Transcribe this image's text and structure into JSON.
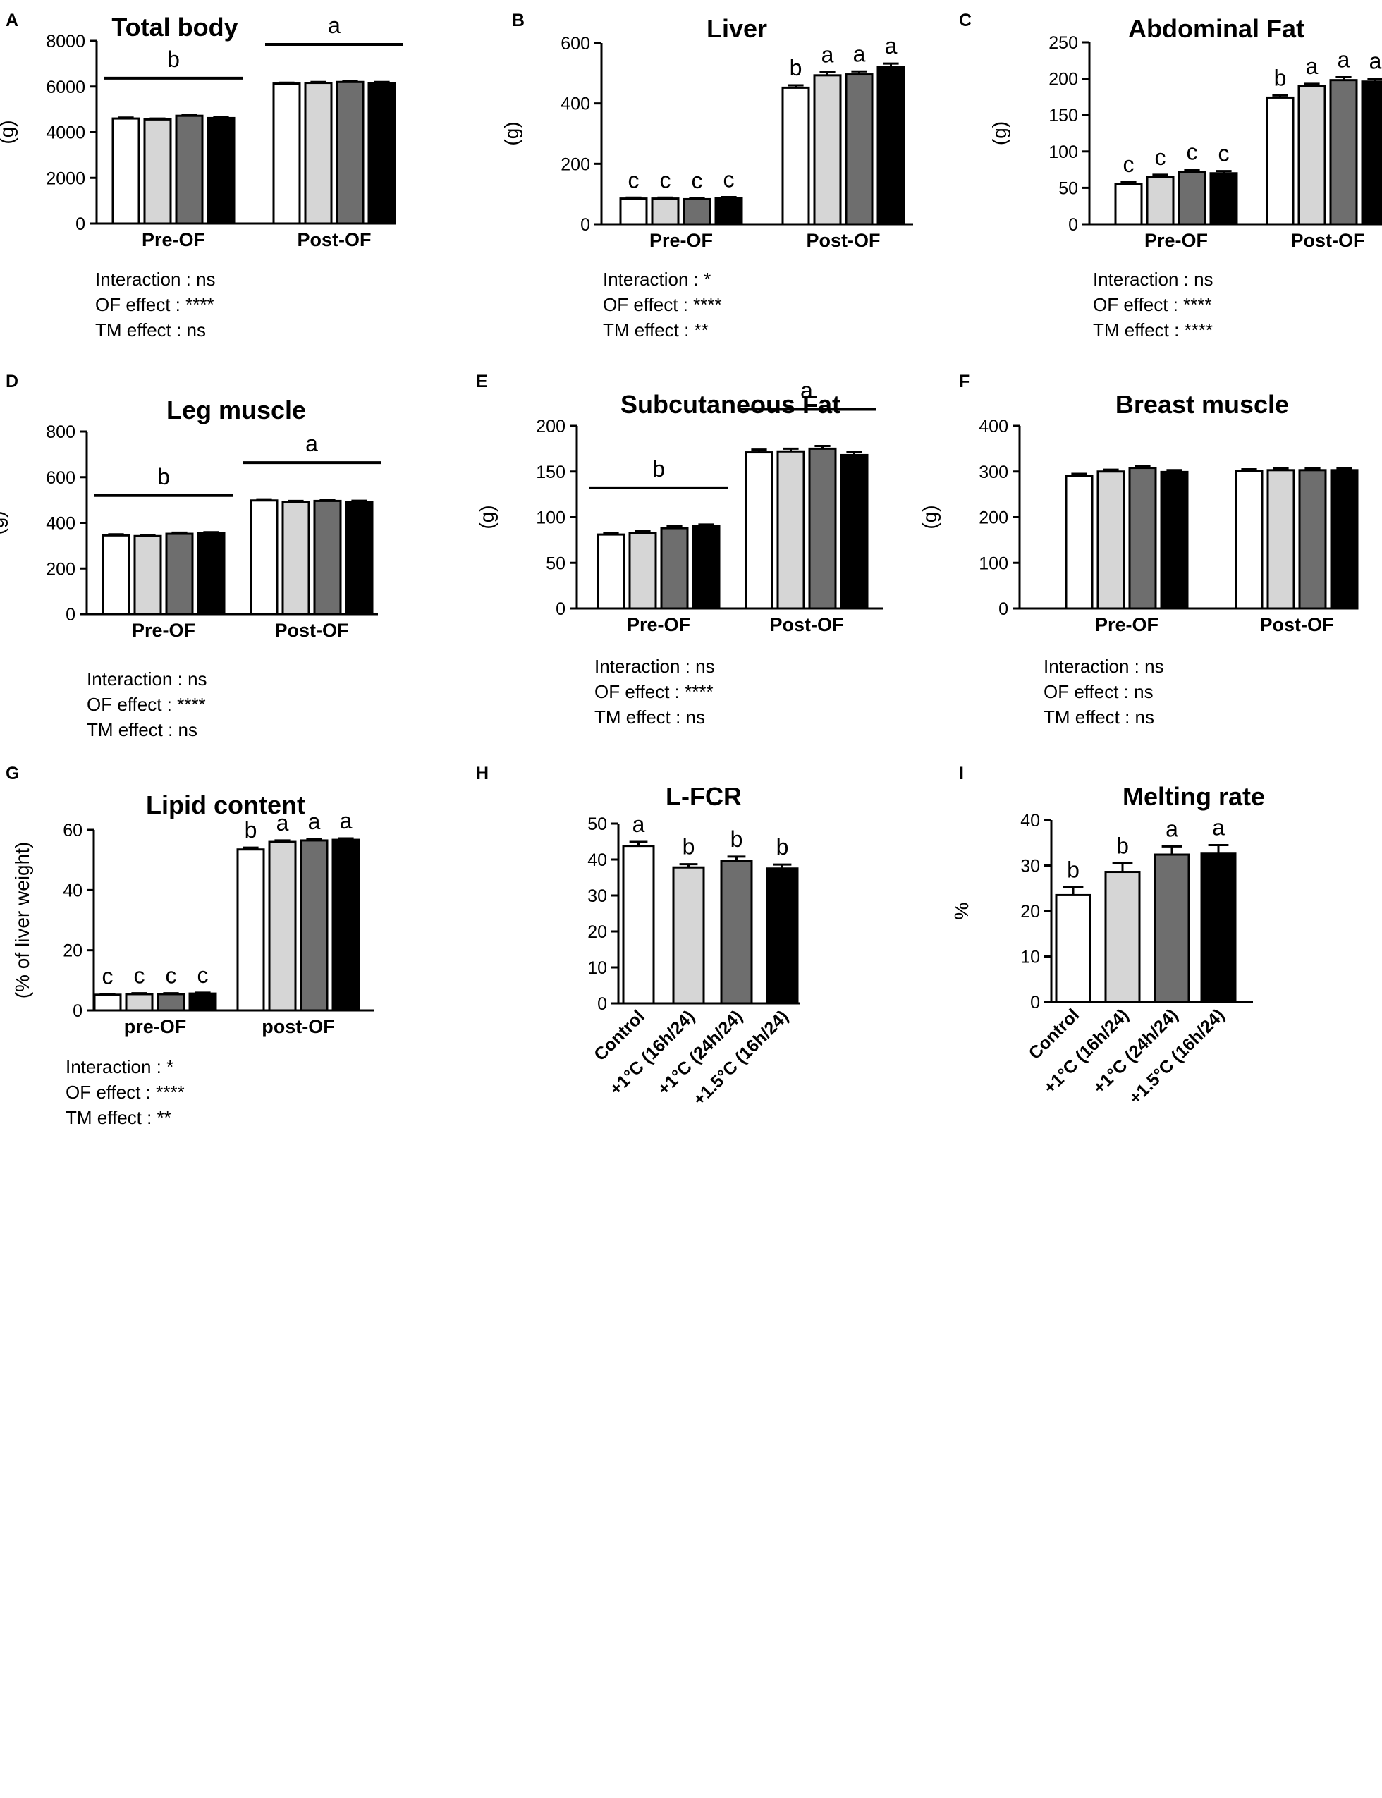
{
  "legend_fills": {
    "control": "#ffffff",
    "tm1_16": "#d6d6d6",
    "tm1_24": "#6e6e6e",
    "tm15_16": "#000000"
  },
  "chart_data": [
    {
      "id": "A",
      "type": "bar",
      "panel_label": "A",
      "title": "Total body",
      "ylabel": "(g)",
      "ylim": [
        0,
        8000
      ],
      "yticks": [
        "0",
        "2000",
        "4000",
        "6000",
        "8000"
      ],
      "ytick_values": [
        0,
        2000,
        4000,
        6000,
        8000
      ],
      "groups": [
        "Pre-OF",
        "Post-OF"
      ],
      "series": [
        {
          "name": "Control",
          "values": [
            4600,
            6130
          ]
        },
        {
          "name": "+1°C (16h/24)",
          "values": [
            4560,
            6160
          ]
        },
        {
          "name": "+1°C (24h/24)",
          "values": [
            4720,
            6200
          ]
        },
        {
          "name": "+1.5°C (16h/24)",
          "values": [
            4620,
            6160
          ]
        }
      ],
      "errors": [
        [
          40,
          40
        ],
        [
          40,
          40
        ],
        [
          40,
          40
        ],
        [
          40,
          40
        ]
      ],
      "group_letters": [
        "b",
        "a"
      ],
      "bar_letters": null,
      "stats": [
        "Interaction : ns",
        "OF effect : ****",
        "TM effect : ns"
      ]
    },
    {
      "id": "B",
      "type": "bar",
      "panel_label": "B",
      "title": "Liver",
      "ylabel": "(g)",
      "ylim": [
        0,
        600
      ],
      "yticks": [
        "0",
        "200",
        "400",
        "600"
      ],
      "ytick_values": [
        0,
        200,
        400,
        600
      ],
      "groups": [
        "Pre-OF",
        "Post-OF"
      ],
      "series": [
        {
          "name": "Control",
          "values": [
            85,
            452
          ]
        },
        {
          "name": "+1°C (16h/24)",
          "values": [
            85,
            493
          ]
        },
        {
          "name": "+1°C (24h/24)",
          "values": [
            83,
            496
          ]
        },
        {
          "name": "+1.5°C (16h/24)",
          "values": [
            87,
            520
          ]
        }
      ],
      "errors": [
        [
          3,
          8
        ],
        [
          3,
          10
        ],
        [
          3,
          10
        ],
        [
          3,
          12
        ]
      ],
      "group_letters": null,
      "bar_letters": [
        [
          "c",
          "b"
        ],
        [
          "c",
          "a"
        ],
        [
          "c",
          "a"
        ],
        [
          "c",
          "a"
        ]
      ],
      "stats": [
        "Interaction : *",
        "OF effect : ****",
        "TM effect : **"
      ]
    },
    {
      "id": "C",
      "type": "bar",
      "panel_label": "C",
      "title": "Abdominal Fat",
      "ylabel": "(g)",
      "ylim": [
        0,
        250
      ],
      "yticks": [
        "0",
        "50",
        "100",
        "150",
        "200",
        "250"
      ],
      "ytick_values": [
        0,
        50,
        100,
        150,
        200,
        250
      ],
      "groups": [
        "Pre-OF",
        "Post-OF"
      ],
      "series": [
        {
          "name": "Control",
          "values": [
            55,
            174
          ]
        },
        {
          "name": "+1°C (16h/24)",
          "values": [
            65,
            190
          ]
        },
        {
          "name": "+1°C (24h/24)",
          "values": [
            72,
            198
          ]
        },
        {
          "name": "+1.5°C (16h/24)",
          "values": [
            70,
            196
          ]
        }
      ],
      "errors": [
        [
          3,
          3
        ],
        [
          3,
          3
        ],
        [
          3,
          4
        ],
        [
          3,
          4
        ]
      ],
      "group_letters": null,
      "bar_letters": [
        [
          "c",
          "b"
        ],
        [
          "c",
          "a"
        ],
        [
          "c",
          "a"
        ],
        [
          "c",
          "a"
        ]
      ],
      "stats": [
        "Interaction : ns",
        "OF effect : ****",
        "TM effect : ****"
      ]
    },
    {
      "id": "D",
      "type": "bar",
      "panel_label": "D",
      "title": "Leg muscle",
      "ylabel": "(g)",
      "ylim": [
        0,
        800
      ],
      "yticks": [
        "0",
        "200",
        "400",
        "600",
        "800"
      ],
      "ytick_values": [
        0,
        200,
        400,
        600,
        800
      ],
      "groups": [
        "Pre-OF",
        "Post-OF"
      ],
      "series": [
        {
          "name": "Control",
          "values": [
            345,
            498
          ]
        },
        {
          "name": "+1°C (16h/24)",
          "values": [
            342,
            491
          ]
        },
        {
          "name": "+1°C (24h/24)",
          "values": [
            352,
            496
          ]
        },
        {
          "name": "+1.5°C (16h/24)",
          "values": [
            354,
            492
          ]
        }
      ],
      "errors": [
        [
          5,
          5
        ],
        [
          5,
          5
        ],
        [
          5,
          5
        ],
        [
          5,
          5
        ]
      ],
      "group_letters": [
        "b",
        "a"
      ],
      "bar_letters": null,
      "stats": [
        "Interaction : ns",
        "OF effect : ****",
        "TM effect : ns"
      ]
    },
    {
      "id": "E",
      "type": "bar",
      "panel_label": "E",
      "title": "Subcutaneous Fat",
      "ylabel": "(g)",
      "ylim": [
        0,
        200
      ],
      "yticks": [
        "0",
        "50",
        "100",
        "150",
        "200"
      ],
      "ytick_values": [
        0,
        50,
        100,
        150,
        200
      ],
      "groups": [
        "Pre-OF",
        "Post-OF"
      ],
      "series": [
        {
          "name": "Control",
          "values": [
            81,
            171
          ]
        },
        {
          "name": "+1°C (16h/24)",
          "values": [
            83,
            172
          ]
        },
        {
          "name": "+1°C (24h/24)",
          "values": [
            88,
            175
          ]
        },
        {
          "name": "+1.5°C (16h/24)",
          "values": [
            90,
            168
          ]
        }
      ],
      "errors": [
        [
          2,
          3
        ],
        [
          2,
          3
        ],
        [
          2,
          3
        ],
        [
          2,
          3
        ]
      ],
      "group_letters": [
        "b",
        "a"
      ],
      "bar_letters": null,
      "stats": [
        "Interaction : ns",
        "OF effect : ****",
        "TM effect : ns"
      ]
    },
    {
      "id": "F",
      "type": "bar",
      "panel_label": "F",
      "title": "Breast muscle",
      "ylabel": "(g)",
      "ylim": [
        0,
        400
      ],
      "yticks": [
        "0",
        "100",
        "200",
        "300",
        "400"
      ],
      "ytick_values": [
        0,
        100,
        200,
        300,
        400
      ],
      "groups": [
        "Pre-OF",
        "Post-OF"
      ],
      "series": [
        {
          "name": "Control",
          "values": [
            291,
            301
          ]
        },
        {
          "name": "+1°C (16h/24)",
          "values": [
            300,
            303
          ]
        },
        {
          "name": "+1°C (24h/24)",
          "values": [
            308,
            303
          ]
        },
        {
          "name": "+1.5°C (16h/24)",
          "values": [
            299,
            303
          ]
        }
      ],
      "errors": [
        [
          4,
          4
        ],
        [
          4,
          4
        ],
        [
          4,
          4
        ],
        [
          4,
          4
        ]
      ],
      "group_letters": null,
      "bar_letters": null,
      "stats": [
        "Interaction : ns",
        "OF effect : ns",
        "TM effect : ns"
      ]
    },
    {
      "id": "G",
      "type": "bar",
      "panel_label": "G",
      "title": "Lipid content",
      "ylabel": "(% of liver weight)",
      "ylim": [
        0,
        60
      ],
      "yticks": [
        "0",
        "20",
        "40",
        "60"
      ],
      "ytick_values": [
        0,
        20,
        40,
        60
      ],
      "groups": [
        "pre-OF",
        "post-OF"
      ],
      "series": [
        {
          "name": "Control",
          "values": [
            5.2,
            53.5
          ]
        },
        {
          "name": "+1°C (16h/24)",
          "values": [
            5.4,
            56
          ]
        },
        {
          "name": "+1°C (24h/24)",
          "values": [
            5.4,
            56.5
          ]
        },
        {
          "name": "+1.5°C (16h/24)",
          "values": [
            5.6,
            56.7
          ]
        }
      ],
      "errors": [
        [
          0.3,
          0.6
        ],
        [
          0.3,
          0.5
        ],
        [
          0.3,
          0.5
        ],
        [
          0.3,
          0.5
        ]
      ],
      "group_letters": null,
      "bar_letters": [
        [
          "c",
          "b"
        ],
        [
          "c",
          "a"
        ],
        [
          "c",
          "a"
        ],
        [
          "c",
          "a"
        ]
      ],
      "stats": [
        "Interaction : *",
        "OF effect : ****",
        "TM effect : **"
      ]
    },
    {
      "id": "H",
      "type": "bar",
      "panel_label": "H",
      "title": "L-FCR",
      "ylabel": "",
      "ylim": [
        0,
        50
      ],
      "yticks": [
        "0",
        "10",
        "20",
        "30",
        "40",
        "50"
      ],
      "ytick_values": [
        0,
        10,
        20,
        30,
        40,
        50
      ],
      "categories": [
        "Control",
        "+1°C (16h/24)",
        "+1°C (24h/24)",
        "+1.5°C (16h/24)"
      ],
      "values": [
        43.8,
        37.8,
        39.7,
        37.5
      ],
      "errors": [
        1.1,
        0.9,
        1.1,
        1.1
      ],
      "bar_letters": [
        "a",
        "b",
        "b",
        "b"
      ],
      "stats": []
    },
    {
      "id": "I",
      "type": "bar",
      "panel_label": "I",
      "title": "Melting rate",
      "ylabel": "%",
      "ylim": [
        0,
        40
      ],
      "yticks": [
        "0",
        "10",
        "20",
        "30",
        "40"
      ],
      "ytick_values": [
        0,
        10,
        20,
        30,
        40
      ],
      "categories": [
        "Control",
        "+1°C (16h/24)",
        "+1°C (24h/24)",
        "+1.5°C (16h/24)"
      ],
      "values": [
        23.5,
        28.6,
        32.4,
        32.6
      ],
      "errors": [
        1.7,
        1.9,
        1.8,
        1.9
      ],
      "bar_letters": [
        "b",
        "b",
        "a",
        "a"
      ],
      "stats": []
    }
  ]
}
